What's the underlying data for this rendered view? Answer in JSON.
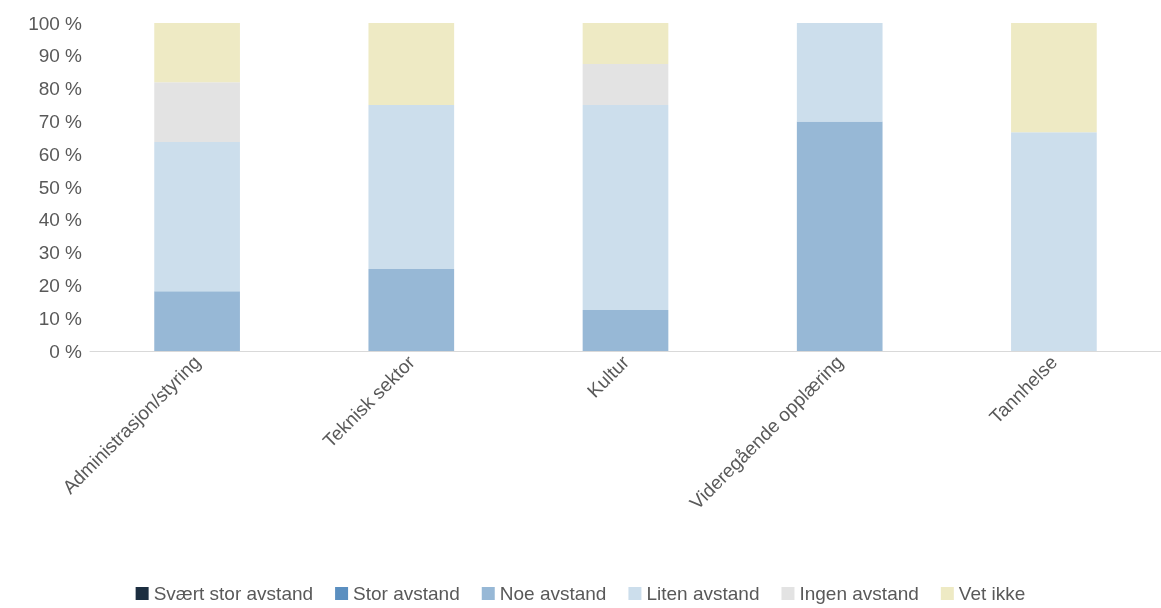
{
  "chart_data": {
    "type": "bar",
    "stacked": true,
    "categories": [
      "Administrasjon/styring",
      "Teknisk sektor",
      "Kultur",
      "Videregående opplæring",
      "Tannhelse"
    ],
    "series": [
      {
        "name": "Svært stor avstand",
        "color": "#1c2e40",
        "values": [
          0,
          0,
          0,
          0,
          0
        ]
      },
      {
        "name": "Stor avstand",
        "color": "#5b8fc0",
        "values": [
          0,
          0,
          0,
          0,
          0
        ]
      },
      {
        "name": "Noe avstand",
        "color": "#97b8d6",
        "values": [
          18.2,
          25,
          12.5,
          70,
          0
        ]
      },
      {
        "name": "Liten avstand",
        "color": "#ccdeec",
        "values": [
          45.5,
          50,
          62.5,
          30,
          66.7
        ]
      },
      {
        "name": "Ingen avstand",
        "color": "#e3e3e3",
        "values": [
          18.2,
          0,
          12.5,
          0,
          0
        ]
      },
      {
        "name": "Vet ikke",
        "color": "#eeeac4",
        "values": [
          18.1,
          25,
          12.5,
          0,
          33.3
        ]
      }
    ],
    "ylim": [
      0,
      100
    ],
    "yticks": [
      {
        "value": 0,
        "label": "0 %"
      },
      {
        "value": 10,
        "label": "10 %"
      },
      {
        "value": 20,
        "label": "20 %"
      },
      {
        "value": 30,
        "label": "30 %"
      },
      {
        "value": 40,
        "label": "40 %"
      },
      {
        "value": 50,
        "label": "50 %"
      },
      {
        "value": 60,
        "label": "60 %"
      },
      {
        "value": 70,
        "label": "70 %"
      },
      {
        "value": 80,
        "label": "80 %"
      },
      {
        "value": 90,
        "label": "90 %"
      },
      {
        "value": 100,
        "label": "100 %"
      }
    ],
    "grid": false,
    "legend": "bottom"
  }
}
